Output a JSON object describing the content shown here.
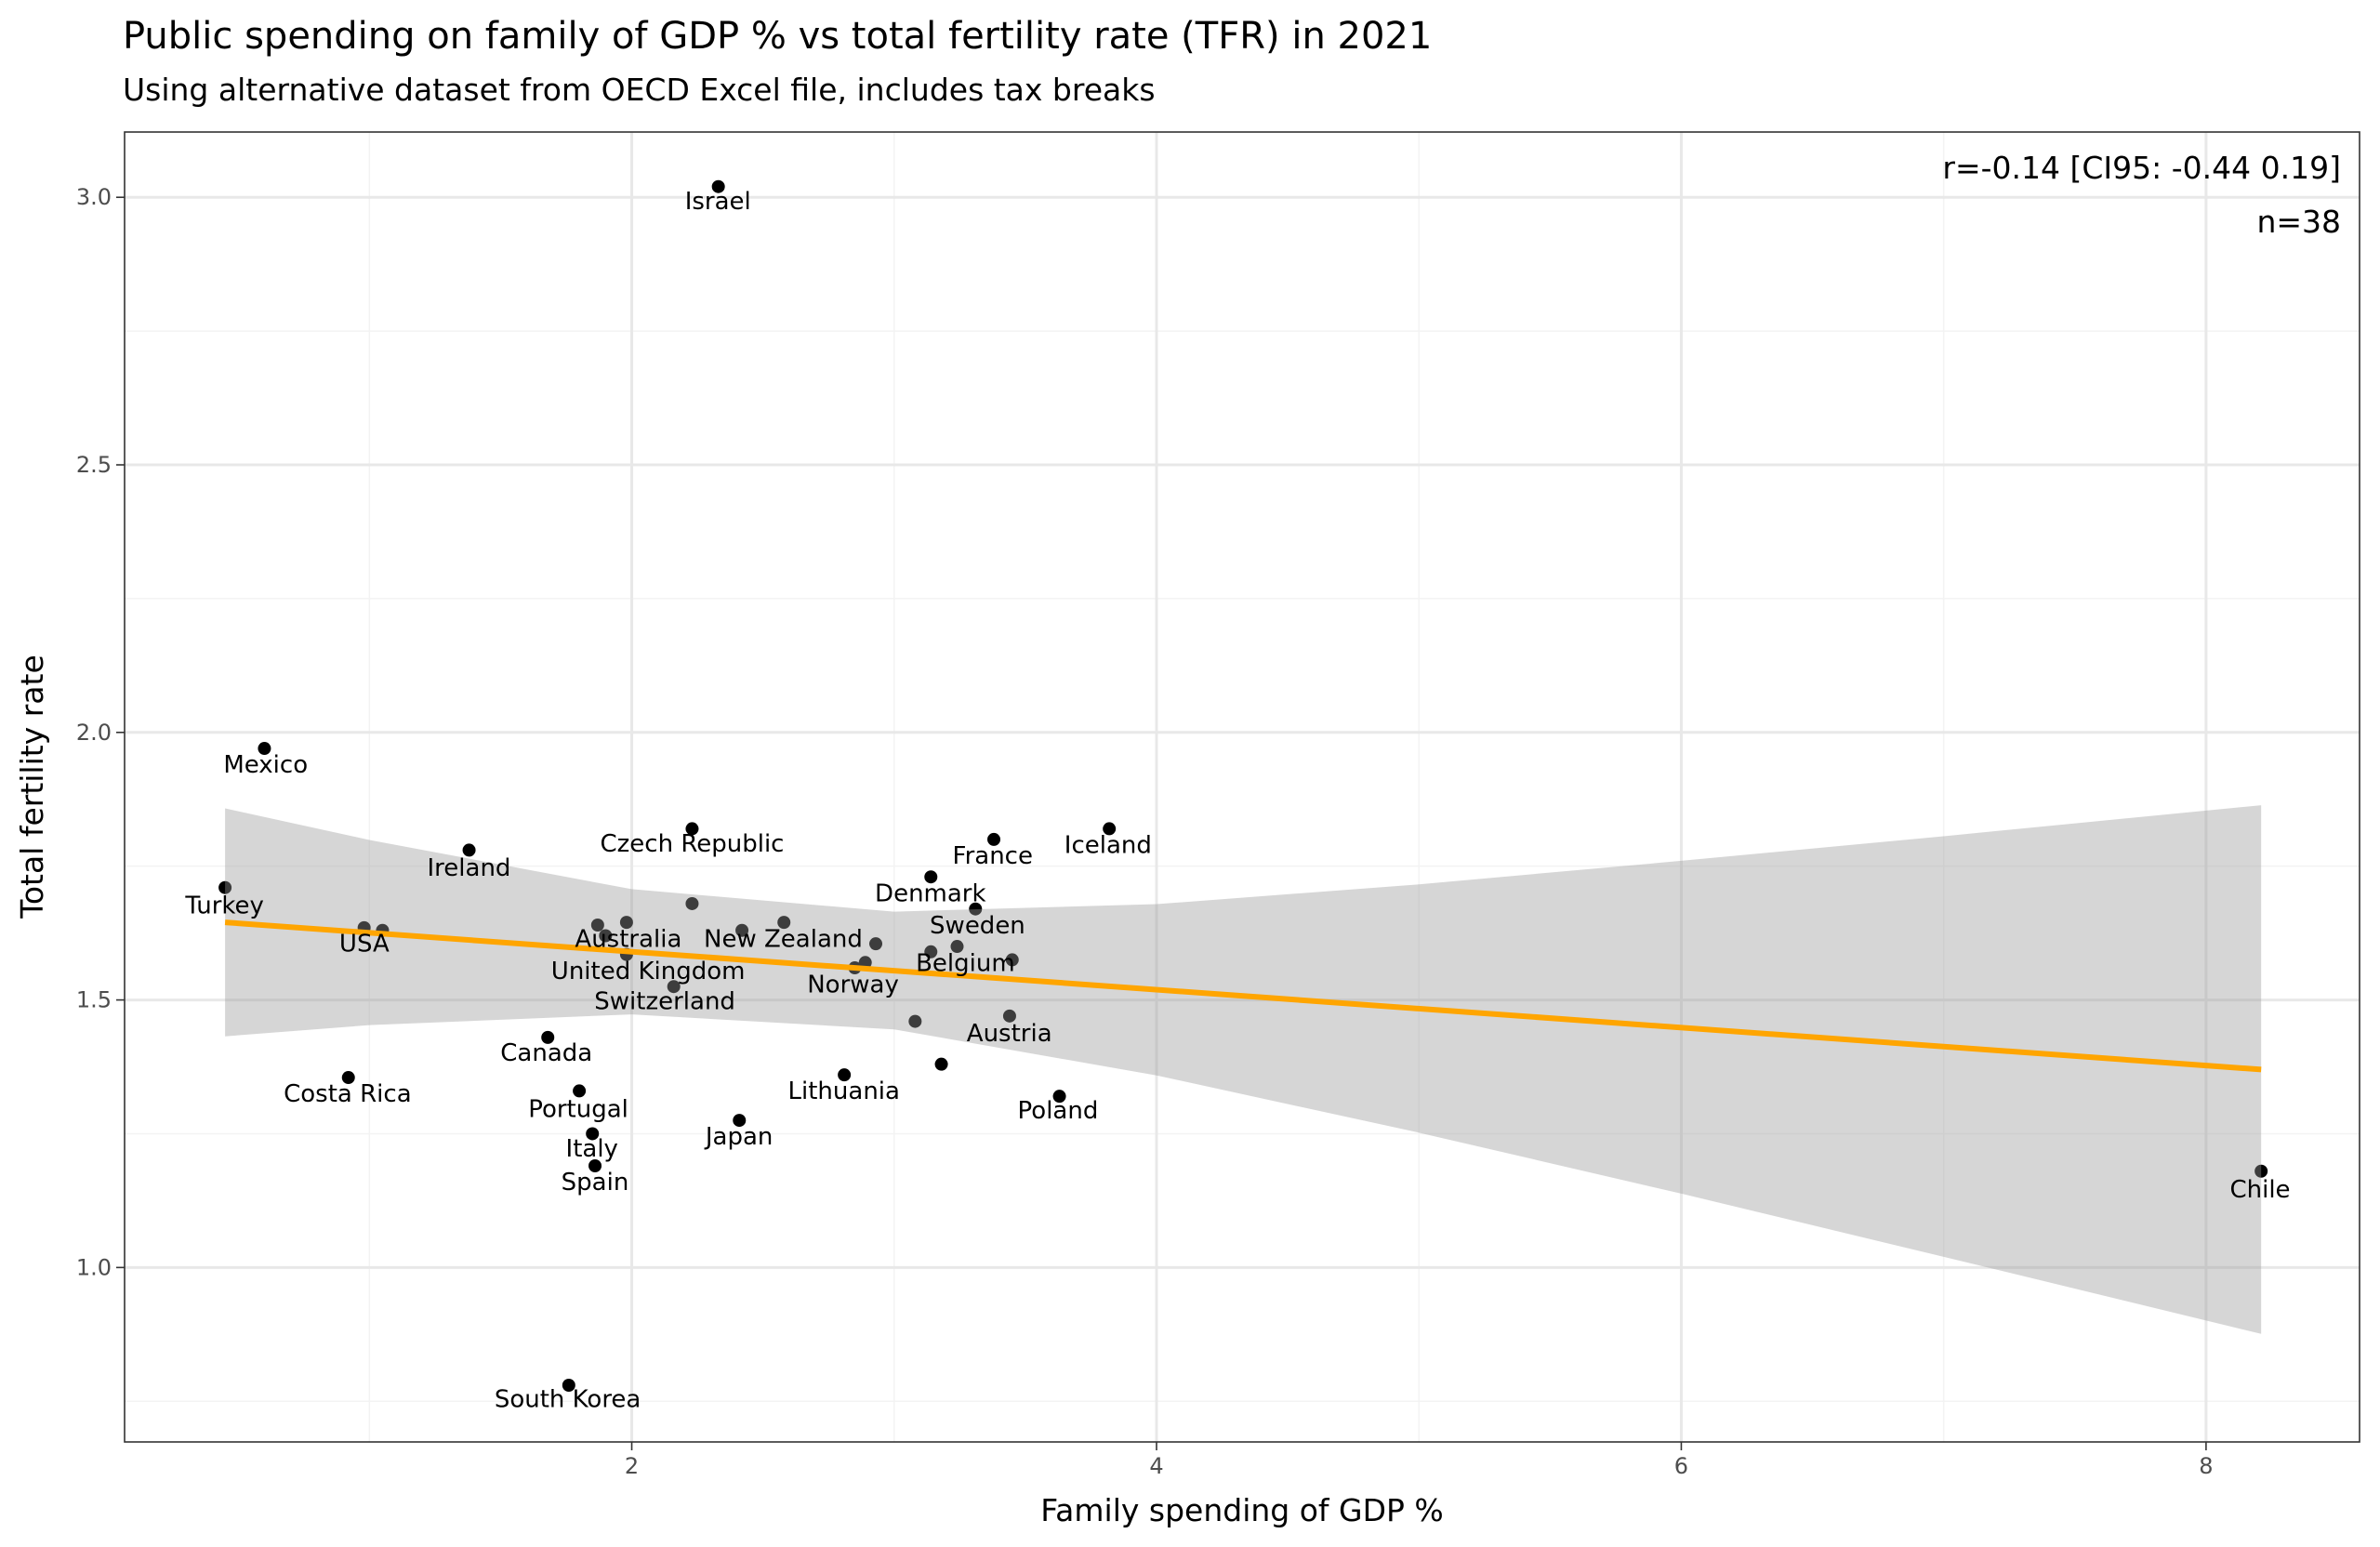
{
  "chart_data": {
    "type": "scatter",
    "title": "Public spending on family of GDP % vs total fertility rate (TFR) in 2021",
    "subtitle": "Using alternative dataset from OECD Excel file, includes tax breaks",
    "xlabel": "Family spending of GDP %",
    "ylabel": "Total fertility rate",
    "xlim": [
      0.067,
      8.585
    ],
    "ylim": [
      0.674,
      3.122
    ],
    "x_ticks": [
      2,
      4,
      6,
      8
    ],
    "x_tick_labels": [
      "2",
      "4",
      "6",
      "8"
    ],
    "y_ticks": [
      1.0,
      1.5,
      2.0,
      2.5,
      3.0
    ],
    "y_tick_labels": [
      "1.0",
      "1.5",
      "2.0",
      "2.5",
      "3.0"
    ],
    "grid": true,
    "annotations": [
      "r=-0.14 [CI95: -0.44 0.19]",
      "n=38"
    ],
    "annotation_placement": "top-right",
    "fit_line": {
      "color": "#FFA500",
      "x": [
        0.45,
        8.21
      ],
      "y": [
        1.645,
        1.37
      ]
    },
    "confidence_band": {
      "color": "#999999",
      "x": [
        0.45,
        1,
        2,
        3,
        4,
        5,
        6,
        7,
        8.21
      ],
      "lower": [
        1.432,
        1.453,
        1.473,
        1.445,
        1.359,
        1.252,
        1.138,
        1.02,
        0.876
      ],
      "upper": [
        1.858,
        1.799,
        1.707,
        1.665,
        1.679,
        1.716,
        1.76,
        1.806,
        1.864
      ]
    },
    "points": [
      {
        "label": "Israel",
        "x": 2.33,
        "y": 3.02
      },
      {
        "label": "Mexico",
        "x": 0.6,
        "y": 1.97
      },
      {
        "label": "Turkey",
        "x": 0.45,
        "y": 1.71
      },
      {
        "label": "USA",
        "x": 0.98,
        "y": 1.635
      },
      {
        "label": "Ireland",
        "x": 1.38,
        "y": 1.78
      },
      {
        "label": "Czech Republic",
        "x": 2.23,
        "y": 1.82
      },
      {
        "label": "France",
        "x": 3.38,
        "y": 1.8
      },
      {
        "label": "Iceland",
        "x": 3.82,
        "y": 1.82
      },
      {
        "label": "Denmark",
        "x": 3.14,
        "y": 1.73
      },
      {
        "label": "Sweden",
        "x": 3.31,
        "y": 1.67
      },
      {
        "label": "Australia",
        "x": 1.87,
        "y": 1.64
      },
      {
        "label": "New Zealand",
        "x": 2.58,
        "y": 1.645
      },
      {
        "label": "United Kingdom",
        "x": 1.98,
        "y": 1.585
      },
      {
        "label": "Switzerland",
        "x": 2.16,
        "y": 1.525
      },
      {
        "label": "Norway",
        "x": 2.85,
        "y": 1.56
      },
      {
        "label": "Belgium",
        "x": 3.45,
        "y": 1.575
      },
      {
        "label": "Austria",
        "x": 3.44,
        "y": 1.47
      },
      {
        "label": "Canada",
        "x": 1.68,
        "y": 1.43
      },
      {
        "label": "Costa Rica",
        "x": 0.92,
        "y": 1.355
      },
      {
        "label": "Portugal",
        "x": 1.8,
        "y": 1.33
      },
      {
        "label": "Lithuania",
        "x": 2.81,
        "y": 1.36
      },
      {
        "label": "Poland",
        "x": 3.63,
        "y": 1.32
      },
      {
        "label": "Italy",
        "x": 1.85,
        "y": 1.25
      },
      {
        "label": "Japan",
        "x": 2.41,
        "y": 1.275
      },
      {
        "label": "Spain",
        "x": 1.86,
        "y": 1.19
      },
      {
        "label": "Chile",
        "x": 8.21,
        "y": 1.18
      },
      {
        "label": "South Korea",
        "x": 1.76,
        "y": 0.78
      },
      {
        "label": "",
        "x": 1.9,
        "y": 1.62
      },
      {
        "label": "",
        "x": 1.98,
        "y": 1.645
      },
      {
        "label": "",
        "x": 2.23,
        "y": 1.68
      },
      {
        "label": "",
        "x": 2.42,
        "y": 1.63
      },
      {
        "label": "",
        "x": 2.93,
        "y": 1.605
      },
      {
        "label": "",
        "x": 2.89,
        "y": 1.57
      },
      {
        "label": "",
        "x": 3.14,
        "y": 1.59
      },
      {
        "label": "",
        "x": 3.24,
        "y": 1.6
      },
      {
        "label": "",
        "x": 3.08,
        "y": 1.46
      },
      {
        "label": "",
        "x": 3.18,
        "y": 1.38
      },
      {
        "label": "",
        "x": 1.05,
        "y": 1.63
      }
    ]
  }
}
